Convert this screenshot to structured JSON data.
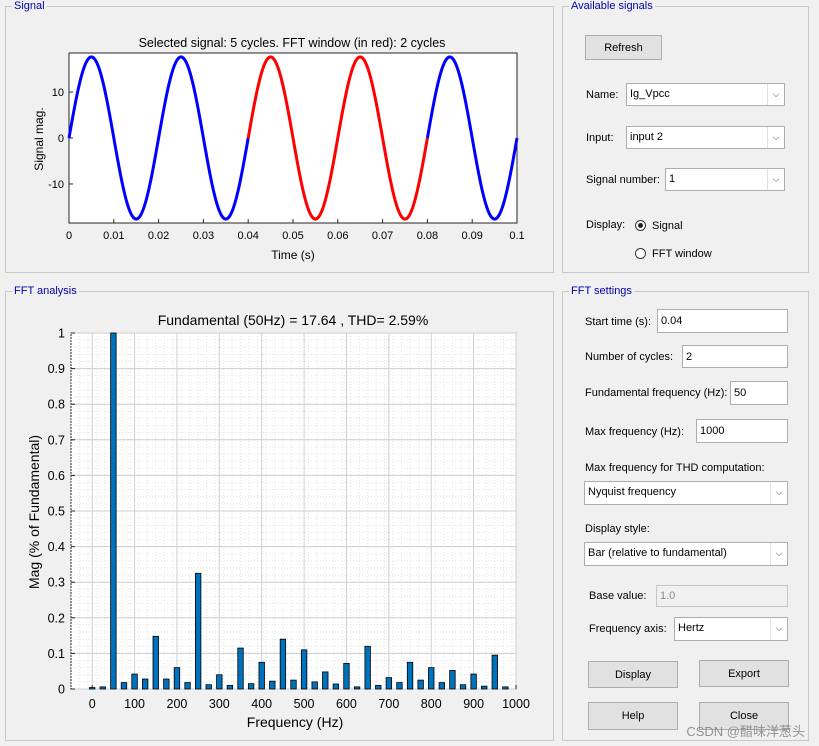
{
  "signal_panel": {
    "title": "Signal",
    "chart_data": {
      "type": "line",
      "title": "Selected signal: 5 cycles. FFT window (in red): 2 cycles",
      "xlabel": "Time (s)",
      "ylabel": "Signal mag.",
      "xlim": [
        0,
        0.1
      ],
      "ylim": [
        -18.5,
        18.5
      ],
      "xticks": [
        "0",
        "0.01",
        "0.02",
        "0.03",
        "0.04",
        "0.05",
        "0.06",
        "0.07",
        "0.08",
        "0.09",
        "0.1"
      ],
      "yticks": [
        "10",
        "0",
        "-10"
      ],
      "amplitude": 17.64,
      "frequency_hz": 50,
      "fft_window": [
        0.04,
        0.08
      ],
      "colors": {
        "signal": "#0000ff",
        "fft_window": "#ff0000"
      }
    }
  },
  "available_signals": {
    "title": "Available signals",
    "refresh_label": "Refresh",
    "name_label": "Name:",
    "name_value": "Ig_Vpcc",
    "input_label": "Input:",
    "input_value": "input 2",
    "signal_number_label": "Signal number:",
    "signal_number_value": "1",
    "display_label": "Display:",
    "display_signal_label": "Signal",
    "display_fft_label": "FFT window"
  },
  "fft_analysis": {
    "title": "FFT analysis",
    "chart_data": {
      "type": "bar",
      "title": "Fundamental (50Hz) = 17.64 , THD= 2.59%",
      "xlabel": "Frequency (Hz)",
      "ylabel": "Mag (% of Fundamental)",
      "xlim": [
        -50,
        1000
      ],
      "ylim": [
        0,
        1
      ],
      "xticks": [
        "0",
        "100",
        "200",
        "300",
        "400",
        "500",
        "600",
        "700",
        "800",
        "900",
        "1000"
      ],
      "yticks": [
        "0",
        "0.1",
        "0.2",
        "0.3",
        "0.4",
        "0.5",
        "0.6",
        "0.7",
        "0.8",
        "0.9",
        "1"
      ],
      "color": "#0072bd",
      "frequencies": [
        0,
        25,
        50,
        75,
        100,
        125,
        150,
        175,
        200,
        225,
        250,
        275,
        300,
        325,
        350,
        375,
        400,
        425,
        450,
        475,
        500,
        525,
        550,
        575,
        600,
        625,
        650,
        675,
        700,
        725,
        750,
        775,
        800,
        825,
        850,
        875,
        900,
        925,
        950,
        975
      ],
      "values": [
        0.004,
        0.006,
        1.0,
        0.018,
        0.042,
        0.028,
        0.148,
        0.028,
        0.06,
        0.018,
        0.325,
        0.012,
        0.04,
        0.01,
        0.115,
        0.015,
        0.075,
        0.022,
        0.14,
        0.025,
        0.11,
        0.02,
        0.048,
        0.014,
        0.072,
        0.006,
        0.12,
        0.01,
        0.032,
        0.018,
        0.075,
        0.025,
        0.06,
        0.018,
        0.052,
        0.012,
        0.042,
        0.008,
        0.095,
        0.006
      ]
    }
  },
  "fft_settings": {
    "title": "FFT settings",
    "start_time_label": "Start time (s):",
    "start_time_value": "0.04",
    "num_cycles_label": "Number of cycles:",
    "num_cycles_value": "2",
    "fund_freq_label": "Fundamental frequency (Hz):",
    "fund_freq_value": "50",
    "max_freq_label": "Max frequency (Hz):",
    "max_freq_value": "1000",
    "thd_max_label": "Max frequency for THD computation:",
    "thd_max_value": "Nyquist frequency",
    "display_style_label": "Display style:",
    "display_style_value": "Bar (relative to fundamental)",
    "base_value_label": "Base value:",
    "base_value_value": "1.0",
    "freq_axis_label": "Frequency axis:",
    "freq_axis_value": "Hertz",
    "display_button": "Display",
    "export_button": "Export",
    "help_button": "Help",
    "close_button": "Close"
  },
  "watermark": "CSDN @醋味洋葱头"
}
